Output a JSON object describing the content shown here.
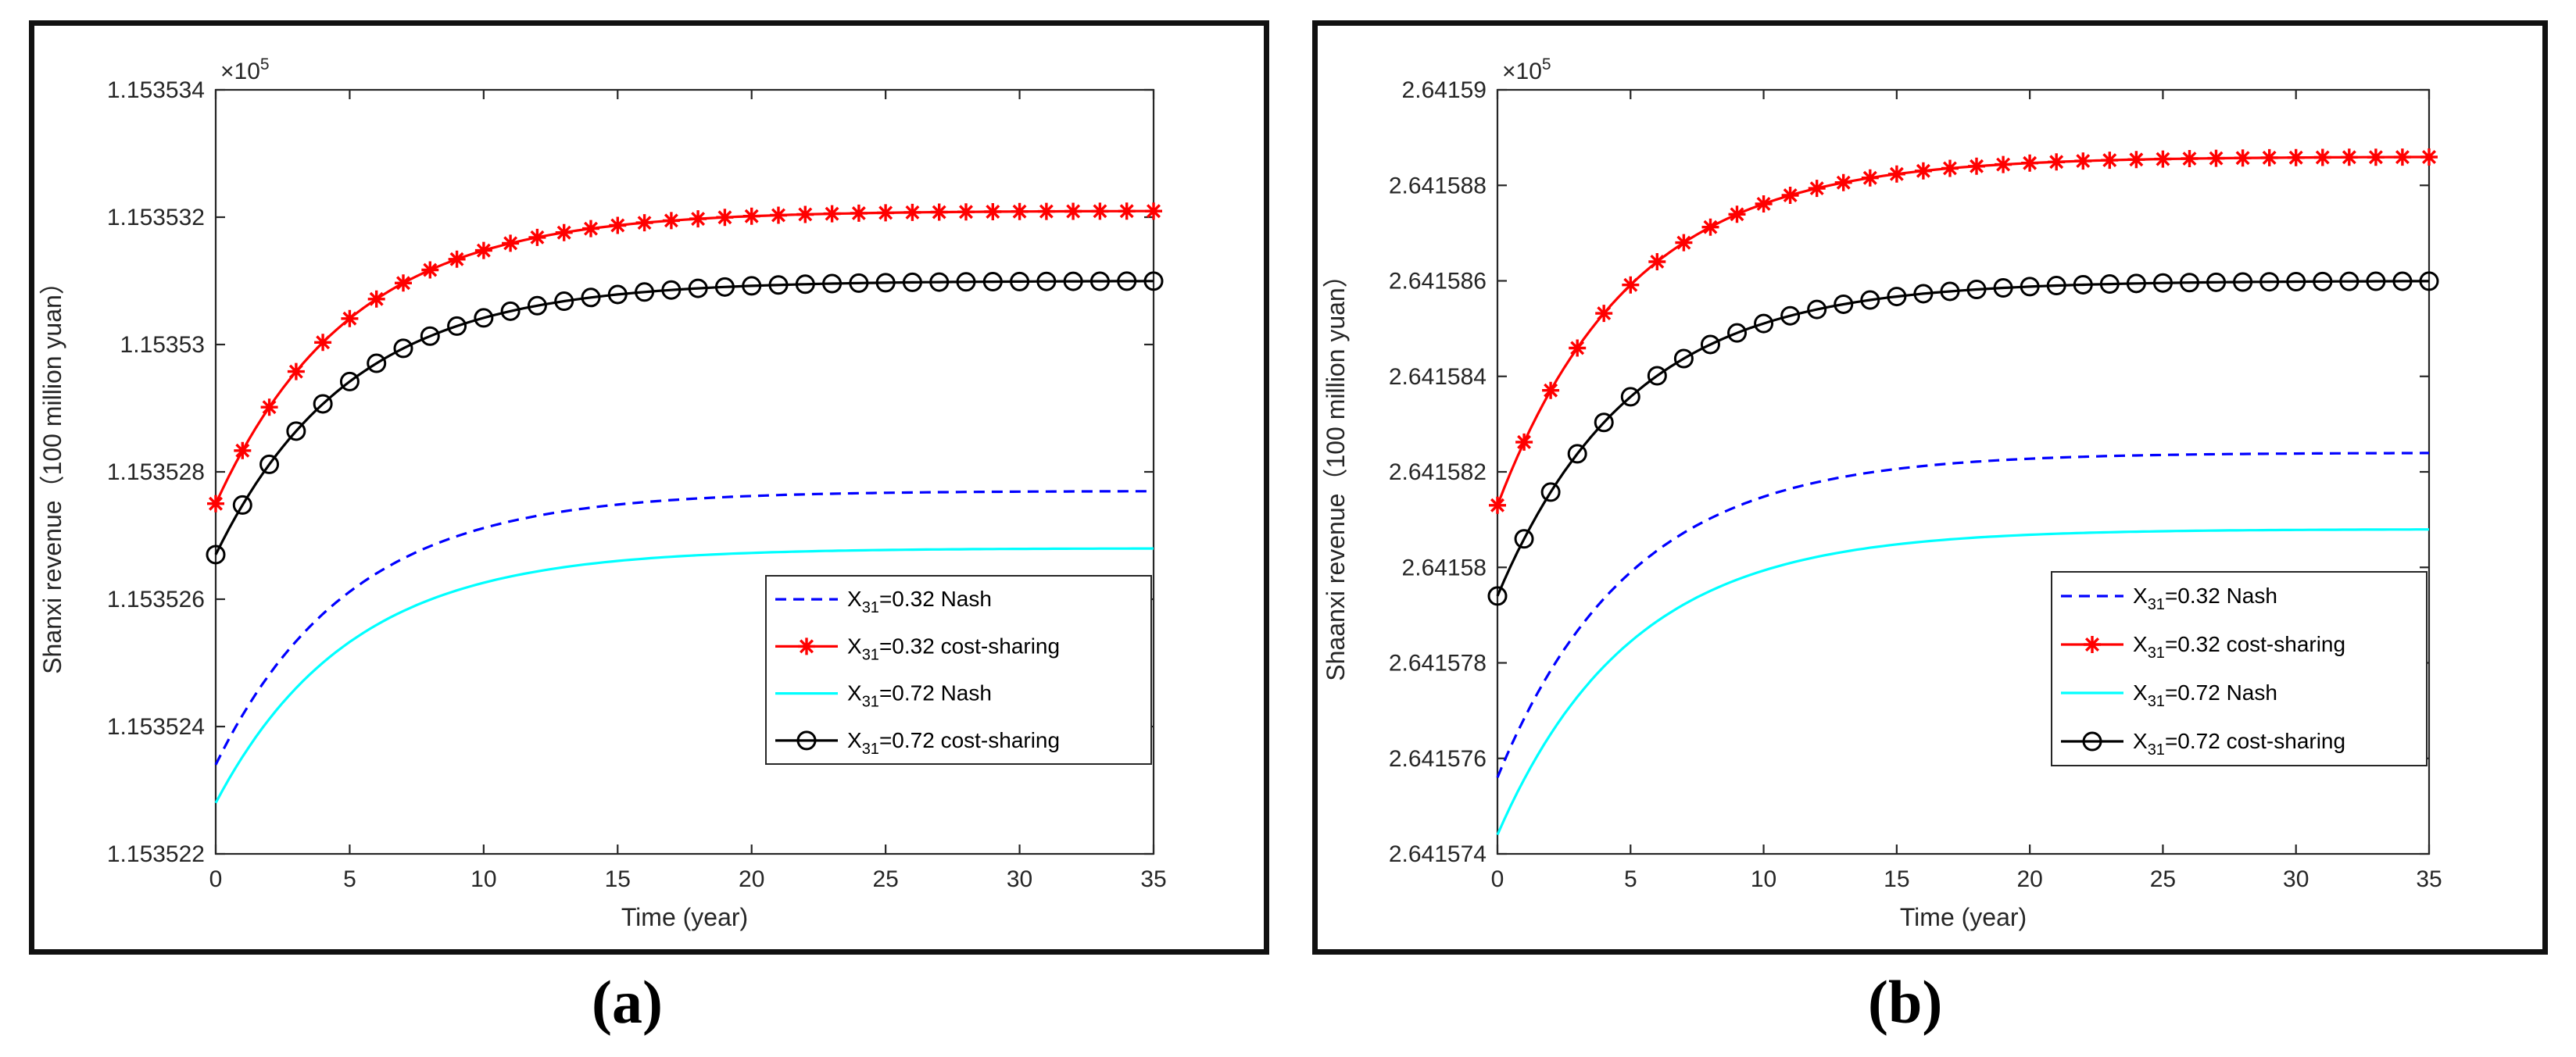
{
  "captions": {
    "a": "(a)",
    "b": "(b)"
  },
  "chart_data": [
    {
      "type": "line",
      "panel": "a",
      "xlabel": "Time (year)",
      "ylabel": "Shanxi revenue（100 million yuan）",
      "exponent_label": "×10",
      "exponent_power": "5",
      "x_ticks": [
        0,
        5,
        10,
        15,
        20,
        25,
        30,
        35
      ],
      "x_tick_labels": [
        "0",
        "5",
        "10",
        "15",
        "20",
        "25",
        "30",
        "35"
      ],
      "y_ticks": [
        1.153522,
        1.153524,
        1.153526,
        1.153528,
        1.15353,
        1.153532,
        1.153534
      ],
      "y_tick_labels": [
        "1.153522",
        "1.153524",
        "1.153526",
        "1.153528",
        "1.15353",
        "1.153532",
        "1.153534"
      ],
      "xlim": [
        0,
        35
      ],
      "ylim": [
        1.153522,
        1.153534
      ],
      "legend_position": "lower-right",
      "series": [
        {
          "name": "X31=0.32 Nash",
          "label_main": "X",
          "label_sub": "31",
          "label_rest": "=0.32 Nash",
          "color": "#0000ff",
          "style": "dashed",
          "marker": "none",
          "start": 1.1535234,
          "end": 1.1535277,
          "rate": 0.2
        },
        {
          "name": "X31=0.32 cost-sharing",
          "label_main": "X",
          "label_sub": "31",
          "label_rest": "=0.32 cost-sharing",
          "color": "#ff0000",
          "style": "solid",
          "marker": "star",
          "start": 1.1535275,
          "end": 1.1535321,
          "rate": 0.2
        },
        {
          "name": "X31=0.72 Nash",
          "label_main": "X",
          "label_sub": "31",
          "label_rest": "=0.72 Nash",
          "color": "#00ffff",
          "style": "solid",
          "marker": "none",
          "start": 1.1535228,
          "end": 1.1535268,
          "rate": 0.2
        },
        {
          "name": "X31=0.72 cost-sharing",
          "label_main": "X",
          "label_sub": "31",
          "label_rest": "=0.72 cost-sharing",
          "color": "#000000",
          "style": "solid",
          "marker": "circle",
          "start": 1.1535267,
          "end": 1.153531,
          "rate": 0.2
        }
      ]
    },
    {
      "type": "line",
      "panel": "b",
      "xlabel": "Time (year)",
      "ylabel": "Shaanxi revenue（100 million yuan）",
      "exponent_label": "×10",
      "exponent_power": "5",
      "x_ticks": [
        0,
        5,
        10,
        15,
        20,
        25,
        30,
        35
      ],
      "x_tick_labels": [
        "0",
        "5",
        "10",
        "15",
        "20",
        "25",
        "30",
        "35"
      ],
      "y_ticks": [
        2.641574,
        2.641576,
        2.641578,
        2.64158,
        2.641582,
        2.641584,
        2.641586,
        2.641588,
        2.64159
      ],
      "y_tick_labels": [
        "2.641574",
        "2.641576",
        "2.641578",
        "2.64158",
        "2.641582",
        "2.641584",
        "2.641586",
        "2.641588",
        "2.64159"
      ],
      "xlim": [
        0,
        35
      ],
      "ylim": [
        2.641574,
        2.64159
      ],
      "legend_position": "lower-right",
      "series": [
        {
          "name": "X31=0.32 Nash",
          "label_main": "X",
          "label_sub": "31",
          "label_rest": "=0.32 Nash",
          "color": "#0000ff",
          "style": "dashed",
          "marker": "none",
          "start": 2.6415756,
          "end": 2.6415824,
          "rate": 0.2
        },
        {
          "name": "X31=0.32 cost-sharing",
          "label_main": "X",
          "label_sub": "31",
          "label_rest": "=0.32 cost-sharing",
          "color": "#ff0000",
          "style": "solid",
          "marker": "star",
          "start": 2.6415813,
          "end": 2.6415886,
          "rate": 0.2
        },
        {
          "name": "X31=0.72 Nash",
          "label_main": "X",
          "label_sub": "31",
          "label_rest": "=0.72 Nash",
          "color": "#00ffff",
          "style": "solid",
          "marker": "none",
          "start": 2.6415744,
          "end": 2.6415808,
          "rate": 0.2
        },
        {
          "name": "X31=0.72 cost-sharing",
          "label_main": "X",
          "label_sub": "31",
          "label_rest": "=0.72 cost-sharing",
          "color": "#000000",
          "style": "solid",
          "marker": "circle",
          "start": 2.6415794,
          "end": 2.641586,
          "rate": 0.2
        }
      ]
    }
  ]
}
